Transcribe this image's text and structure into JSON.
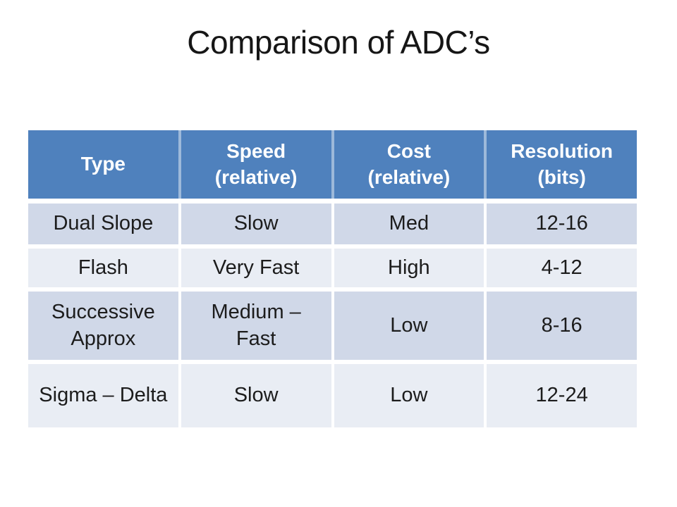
{
  "slide": {
    "title": "Comparison of ADC’s"
  },
  "table": {
    "columns": [
      "Type",
      "Speed\n(relative)",
      "Cost\n(relative)",
      "Resolution\n(bits)"
    ],
    "rows": [
      {
        "type": "Dual Slope",
        "speed": "Slow",
        "cost": "Med",
        "resolution": "12-16"
      },
      {
        "type": "Flash",
        "speed": "Very Fast",
        "cost": "High",
        "resolution": "4-12"
      },
      {
        "type": "Successive\nApprox",
        "speed": "Medium –\nFast",
        "cost": "Low",
        "resolution": "8-16"
      },
      {
        "type": "Sigma – Delta",
        "speed": "Slow",
        "cost": "Low",
        "resolution": "12-24"
      }
    ],
    "colors": {
      "slide_bg": "#ffffff",
      "header_bg": "#4f81bd",
      "header_text": "#ffffff",
      "header_divider": "#9db9da",
      "row_odd_bg": "#d0d8e8",
      "row_even_bg": "#e9edf4",
      "divider": "#ffffff",
      "body_text": "#1c1c1c",
      "title_color": "#161616"
    }
  }
}
